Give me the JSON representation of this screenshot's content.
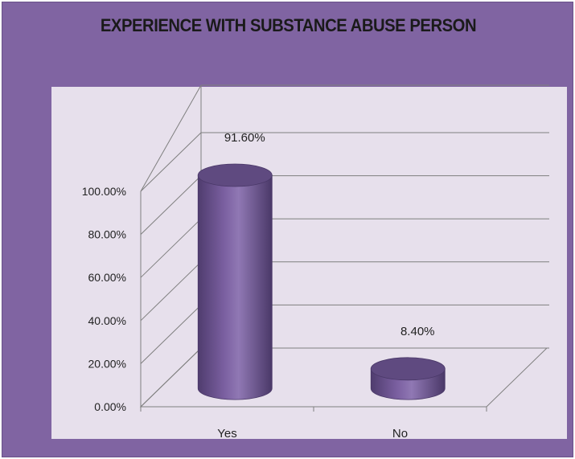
{
  "colors": {
    "frame": "#8064a2",
    "plot_area": "#e7e0ec",
    "cylinder": "#8064a2",
    "cylinder_top": "#5f4a80",
    "grid": "#7f7f7f"
  },
  "chart_data": {
    "type": "bar",
    "shape": "3d-cylinder",
    "title": "EXPERIENCE WITH SUBSTANCE ABUSE PERSON",
    "categories": [
      "Yes",
      "No"
    ],
    "values": [
      91.6,
      8.4
    ],
    "data_labels": [
      "91.60%",
      "8.40%"
    ],
    "y_ticks": [
      "0.00%",
      "20.00%",
      "40.00%",
      "60.00%",
      "80.00%",
      "100.00%"
    ],
    "ylim": [
      0,
      100
    ],
    "grid": true,
    "legend": "none"
  }
}
